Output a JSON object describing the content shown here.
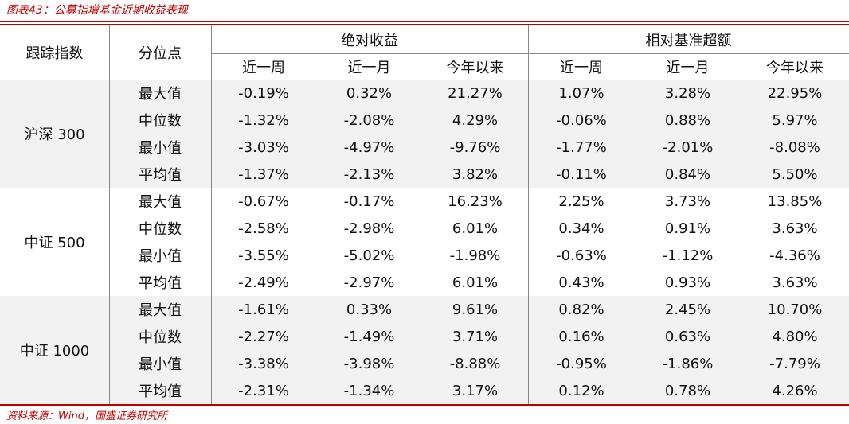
{
  "title": "图表43：公募指增基金近期收益表现",
  "header": {
    "index": "跟踪指数",
    "quantile": "分位点",
    "groups": [
      "绝对收益",
      "相对基准超额"
    ],
    "periods": [
      "近一周",
      "近一月",
      "今年以来",
      "近一周",
      "近一月",
      "今年以来"
    ]
  },
  "groups": [
    {
      "name": "沪深 300",
      "rows": [
        {
          "label": "最大值",
          "values": [
            "-0.19%",
            "0.32%",
            "21.27%",
            "1.07%",
            "3.28%",
            "22.95%"
          ]
        },
        {
          "label": "中位数",
          "values": [
            "-1.32%",
            "-2.08%",
            "4.29%",
            "-0.06%",
            "0.88%",
            "5.97%"
          ]
        },
        {
          "label": "最小值",
          "values": [
            "-3.03%",
            "-4.97%",
            "-9.76%",
            "-1.77%",
            "-2.01%",
            "-8.08%"
          ]
        },
        {
          "label": "平均值",
          "values": [
            "-1.37%",
            "-2.13%",
            "3.82%",
            "-0.11%",
            "0.84%",
            "5.50%"
          ]
        }
      ]
    },
    {
      "name": "中证 500",
      "rows": [
        {
          "label": "最大值",
          "values": [
            "-0.67%",
            "-0.17%",
            "16.23%",
            "2.25%",
            "3.73%",
            "13.85%"
          ]
        },
        {
          "label": "中位数",
          "values": [
            "-2.58%",
            "-2.98%",
            "6.01%",
            "0.34%",
            "0.91%",
            "3.63%"
          ]
        },
        {
          "label": "最小值",
          "values": [
            "-3.55%",
            "-5.02%",
            "-1.98%",
            "-0.63%",
            "-1.12%",
            "-4.36%"
          ]
        },
        {
          "label": "平均值",
          "values": [
            "-2.49%",
            "-2.97%",
            "6.01%",
            "0.43%",
            "0.93%",
            "3.63%"
          ]
        }
      ]
    },
    {
      "name": "中证 1000",
      "rows": [
        {
          "label": "最大值",
          "values": [
            "-1.61%",
            "0.33%",
            "9.61%",
            "0.82%",
            "2.45%",
            "10.70%"
          ]
        },
        {
          "label": "中位数",
          "values": [
            "-2.27%",
            "-1.49%",
            "3.71%",
            "0.16%",
            "0.63%",
            "4.80%"
          ]
        },
        {
          "label": "最小值",
          "values": [
            "-3.38%",
            "-3.98%",
            "-8.88%",
            "-0.95%",
            "-1.86%",
            "-7.79%"
          ]
        },
        {
          "label": "平均值",
          "values": [
            "-2.31%",
            "-1.34%",
            "3.17%",
            "0.12%",
            "0.78%",
            "4.26%"
          ]
        }
      ]
    }
  ],
  "source": "资料来源：Wind，国盛证券研究所"
}
